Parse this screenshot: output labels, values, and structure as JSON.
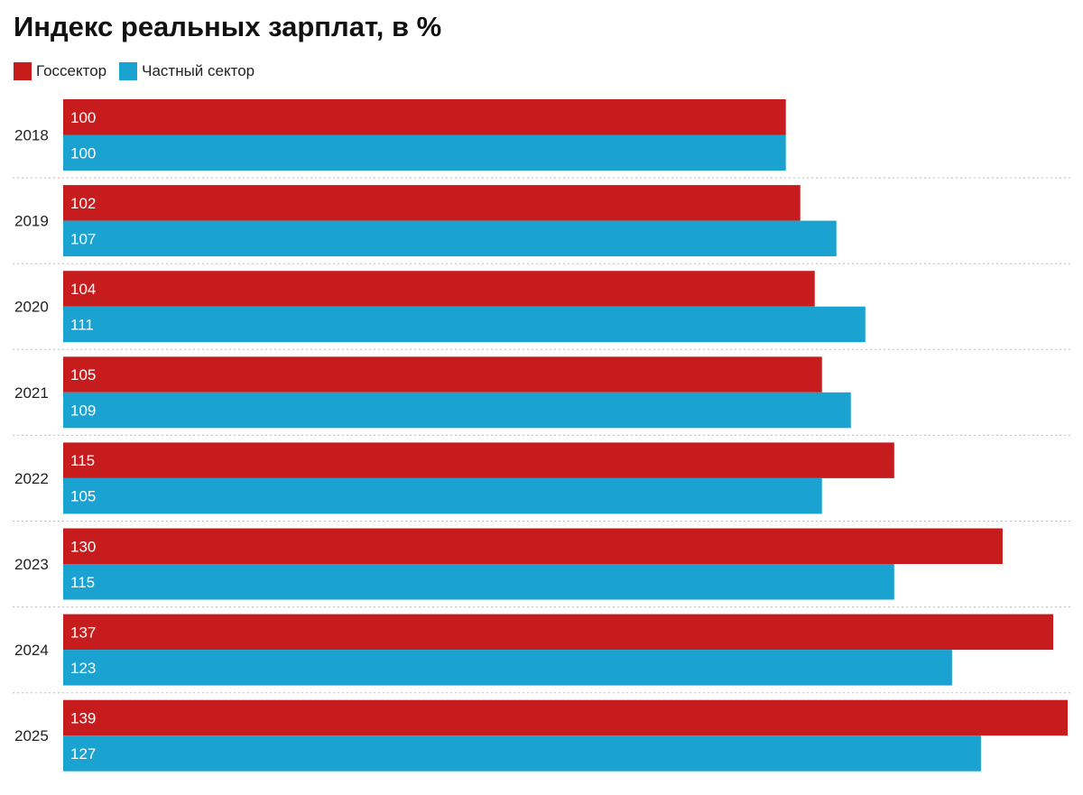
{
  "chart_data": {
    "type": "bar",
    "orientation": "horizontal",
    "title": "Индекс реальных зарплат, в %",
    "categories": [
      "2018",
      "2019",
      "2020",
      "2021",
      "2022",
      "2023",
      "2024",
      "2025"
    ],
    "series": [
      {
        "name": "Госсектор",
        "color": "#c61c1d",
        "values": [
          100,
          102,
          104,
          105,
          115,
          130,
          137,
          139
        ]
      },
      {
        "name": "Частный сектор",
        "color": "#1aa2d0",
        "values": [
          100,
          107,
          111,
          109,
          105,
          115,
          123,
          127
        ]
      }
    ],
    "xlim": [
      0,
      139
    ],
    "legend": "top-left",
    "grid": false,
    "data_labels": true
  }
}
